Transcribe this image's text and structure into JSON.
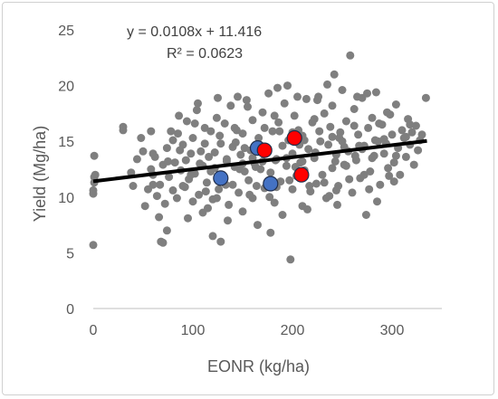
{
  "chart_data": {
    "type": "scatter",
    "xlabel": "EONR (kg/ha)",
    "ylabel": "Yield (Mg/ha)",
    "xlim": [
      0,
      350
    ],
    "ylim": [
      0,
      25
    ],
    "x_ticks": [
      "0",
      "100",
      "200",
      "300"
    ],
    "y_ticks": [
      "0",
      "5",
      "10",
      "15",
      "20",
      "25"
    ],
    "grid": false,
    "annotations": [
      "y = 0.0108x + 11.416",
      "R² = 0.0623"
    ],
    "trendline": {
      "slope": 0.0108,
      "intercept": 11.416,
      "x_range": [
        0,
        335
      ]
    },
    "series": [
      {
        "color": "#7f7f7f",
        "points": [
          [
            0,
            5.7
          ],
          [
            0,
            10.3
          ],
          [
            0,
            10.6
          ],
          [
            1,
            11.3
          ],
          [
            1,
            11.8
          ],
          [
            2,
            12.0
          ],
          [
            1,
            13.7
          ],
          [
            30,
            16.0
          ],
          [
            30,
            16.3
          ],
          [
            38,
            12.2
          ],
          [
            40,
            11.0
          ],
          [
            48,
            15.3
          ],
          [
            50,
            14.1
          ],
          [
            52,
            9.2
          ],
          [
            55,
            10.7
          ],
          [
            58,
            12.5
          ],
          [
            60,
            11.1
          ],
          [
            62,
            13.6
          ],
          [
            64,
            10.1
          ],
          [
            66,
            8.2
          ],
          [
            68,
            6.0
          ],
          [
            70,
            5.9
          ],
          [
            70,
            12.9
          ],
          [
            72,
            9.4
          ],
          [
            74,
            14.4
          ],
          [
            76,
            11.8
          ],
          [
            78,
            15.9
          ],
          [
            80,
            10.6
          ],
          [
            82,
            13.1
          ],
          [
            84,
            9.9
          ],
          [
            86,
            17.3
          ],
          [
            88,
            12.4
          ],
          [
            90,
            14.7
          ],
          [
            92,
            10.9
          ],
          [
            94,
            16.8
          ],
          [
            96,
            11.6
          ],
          [
            98,
            13.9
          ],
          [
            100,
            9.6
          ],
          [
            100,
            15.3
          ],
          [
            102,
            12.1
          ],
          [
            104,
            17.8
          ],
          [
            106,
            10.2
          ],
          [
            108,
            14.1
          ],
          [
            110,
            8.6
          ],
          [
            110,
            12.8
          ],
          [
            112,
            16.2
          ],
          [
            114,
            11.3
          ],
          [
            116,
            13.6
          ],
          [
            118,
            15.9
          ],
          [
            120,
            9.8
          ],
          [
            120,
            6.5
          ],
          [
            122,
            12.6
          ],
          [
            124,
            17.1
          ],
          [
            126,
            10.7
          ],
          [
            128,
            14.8
          ],
          [
            128,
            6.0
          ],
          [
            130,
            11.9
          ],
          [
            132,
            16.6
          ],
          [
            134,
            13.2
          ],
          [
            136,
            9.3
          ],
          [
            138,
            18.2
          ],
          [
            140,
            11.1
          ],
          [
            140,
            14.5
          ],
          [
            142,
            12.7
          ],
          [
            144,
            16.0
          ],
          [
            146,
            10.4
          ],
          [
            148,
            13.8
          ],
          [
            150,
            8.7
          ],
          [
            150,
            15.7
          ],
          [
            152,
            12.3
          ],
          [
            154,
            18.7
          ],
          [
            156,
            11.5
          ],
          [
            158,
            14.2
          ],
          [
            160,
            9.9
          ],
          [
            160,
            16.9
          ],
          [
            162,
            13.0
          ],
          [
            164,
            11.0
          ],
          [
            166,
            15.3
          ],
          [
            168,
            12.5
          ],
          [
            170,
            17.6
          ],
          [
            172,
            10.8
          ],
          [
            174,
            14.0
          ],
          [
            176,
            19.3
          ],
          [
            178,
            12.2
          ],
          [
            180,
            15.9
          ],
          [
            182,
            9.5
          ],
          [
            184,
            13.4
          ],
          [
            186,
            16.7
          ],
          [
            188,
            11.4
          ],
          [
            190,
            14.6
          ],
          [
            190,
            8.4
          ],
          [
            192,
            18.4
          ],
          [
            194,
            12.8
          ],
          [
            196,
            15.1
          ],
          [
            198,
            4.4
          ],
          [
            200,
            10.7
          ],
          [
            200,
            13.9
          ],
          [
            202,
            17.3
          ],
          [
            204,
            11.9
          ],
          [
            206,
            16.0
          ],
          [
            208,
            13.1
          ],
          [
            210,
            9.2
          ],
          [
            210,
            15.5
          ],
          [
            212,
            12.4
          ],
          [
            214,
            18.8
          ],
          [
            216,
            14.3
          ],
          [
            218,
            10.5
          ],
          [
            220,
            16.7
          ],
          [
            222,
            13.5
          ],
          [
            224,
            11.2
          ],
          [
            226,
            19.0
          ],
          [
            228,
            15.0
          ],
          [
            230,
            12.0
          ],
          [
            232,
            17.5
          ],
          [
            234,
            9.9
          ],
          [
            236,
            14.7
          ],
          [
            238,
            16.3
          ],
          [
            240,
            12.6
          ],
          [
            240,
            18.2
          ],
          [
            242,
            21.0
          ],
          [
            244,
            13.8
          ],
          [
            246,
            11.0
          ],
          [
            248,
            15.8
          ],
          [
            250,
            19.6
          ],
          [
            252,
            12.9
          ],
          [
            254,
            16.8
          ],
          [
            256,
            14.1
          ],
          [
            258,
            22.7
          ],
          [
            260,
            10.4
          ],
          [
            262,
            17.9
          ],
          [
            264,
            13.3
          ],
          [
            266,
            15.6
          ],
          [
            268,
            11.7
          ],
          [
            270,
            18.9
          ],
          [
            272,
            14.6
          ],
          [
            274,
            8.4
          ],
          [
            276,
            16.2
          ],
          [
            278,
            12.3
          ],
          [
            280,
            17.1
          ],
          [
            282,
            13.7
          ],
          [
            284,
            19.4
          ],
          [
            286,
            15.0
          ],
          [
            288,
            11.1
          ],
          [
            290,
            16.5
          ],
          [
            292,
            13.9
          ],
          [
            294,
            14.8
          ],
          [
            296,
            12.6
          ],
          [
            298,
            17.4
          ],
          [
            300,
            15.6
          ],
          [
            302,
            13.1
          ],
          [
            304,
            18.3
          ],
          [
            306,
            14.4
          ],
          [
            308,
            12.0
          ],
          [
            310,
            16.0
          ],
          [
            312,
            15.3
          ],
          [
            314,
            13.6
          ],
          [
            316,
            17.0
          ],
          [
            318,
            14.7
          ],
          [
            320,
            15.8
          ],
          [
            322,
            12.9
          ],
          [
            324,
            16.4
          ],
          [
            326,
            14.2
          ],
          [
            328,
            15.1
          ],
          [
            334,
            18.9
          ],
          [
            95,
            8.1
          ],
          [
            135,
            7.9
          ],
          [
            165,
            7.5
          ],
          [
            178,
            6.8
          ],
          [
            215,
            8.9
          ],
          [
            245,
            9.3
          ],
          [
            105,
            18.4
          ],
          [
            125,
            18.9
          ],
          [
            145,
            19.0
          ],
          [
            185,
            19.8
          ],
          [
            205,
            19.0
          ],
          [
            225,
            18.7
          ],
          [
            265,
            19.0
          ],
          [
            275,
            19.3
          ],
          [
            295,
            17.6
          ],
          [
            58,
            15.9
          ],
          [
            85,
            15.7
          ],
          [
            115,
            9.0
          ],
          [
            155,
            18.1
          ],
          [
            195,
            20.0
          ],
          [
            235,
            20.1
          ],
          [
            285,
            9.6
          ],
          [
            60,
            13.9
          ],
          [
            112,
            14.8
          ],
          [
            152,
            14.4
          ],
          [
            172,
            16.2
          ],
          [
            212,
            15.1
          ],
          [
            232,
            11.3
          ],
          [
            252,
            14.5
          ],
          [
            272,
            12.0
          ],
          [
            302,
            11.4
          ],
          [
            75,
            13.2
          ],
          [
            98,
            12.0
          ],
          [
            118,
            12.3
          ],
          [
            143,
            14.9
          ],
          [
            163,
            12.7
          ],
          [
            183,
            13.3
          ],
          [
            203,
            12.7
          ],
          [
            223,
            14.0
          ],
          [
            243,
            13.2
          ],
          [
            263,
            13.7
          ],
          [
            283,
            15.1
          ],
          [
            67,
            11.1
          ],
          [
            93,
            13.3
          ],
          [
            113,
            10.5
          ],
          [
            133,
            11.1
          ],
          [
            157,
            10.2
          ],
          [
            177,
            10.0
          ],
          [
            197,
            11.5
          ],
          [
            217,
            11.0
          ],
          [
            237,
            10.1
          ],
          [
            257,
            11.6
          ],
          [
            277,
            10.7
          ],
          [
            297,
            11.9
          ],
          [
            87,
            14.2
          ],
          [
            107,
            13.0
          ],
          [
            127,
            15.5
          ],
          [
            147,
            12.5
          ],
          [
            167,
            14.4
          ],
          [
            187,
            15.9
          ],
          [
            207,
            14.7
          ],
          [
            227,
            15.9
          ],
          [
            247,
            15.3
          ],
          [
            267,
            14.6
          ],
          [
            287,
            16.6
          ],
          [
            102,
            16.6
          ],
          [
            142,
            16.2
          ],
          [
            182,
            17.3
          ],
          [
            222,
            17.0
          ],
          [
            262,
            16.4
          ],
          [
            292,
            15.2
          ],
          [
            124,
            9.9
          ],
          [
            184,
            10.9
          ],
          [
            244,
            10.6
          ],
          [
            304,
            13.7
          ],
          [
            74,
            7.0
          ],
          [
            134,
            13.4
          ],
          [
            194,
            13.5
          ],
          [
            254,
            12.8
          ],
          [
            314,
            15.4
          ],
          [
            44,
            13.4
          ],
          [
            80,
            15.1
          ],
          [
            122,
            14.0
          ],
          [
            160,
            13.5
          ],
          [
            200,
            15.8
          ],
          [
            240,
            15.4
          ],
          [
            280,
            13.5
          ],
          [
            318,
            16.5
          ],
          [
            90,
            11.0
          ],
          [
            150,
            13.0
          ],
          [
            210,
            13.2
          ],
          [
            270,
            14.3
          ],
          [
            330,
            15.6
          ],
          [
            60,
            12.0
          ],
          [
            170,
            13.2
          ],
          [
            250,
            15.0
          ]
        ]
      },
      {
        "color": "#4472c4",
        "points": [
          [
            128,
            11.7
          ],
          [
            165,
            14.4
          ],
          [
            178,
            11.2
          ]
        ]
      },
      {
        "color": "#ff0000",
        "points": [
          [
            172,
            14.2
          ],
          [
            202,
            15.3
          ],
          [
            209,
            12.0
          ]
        ]
      }
    ]
  }
}
